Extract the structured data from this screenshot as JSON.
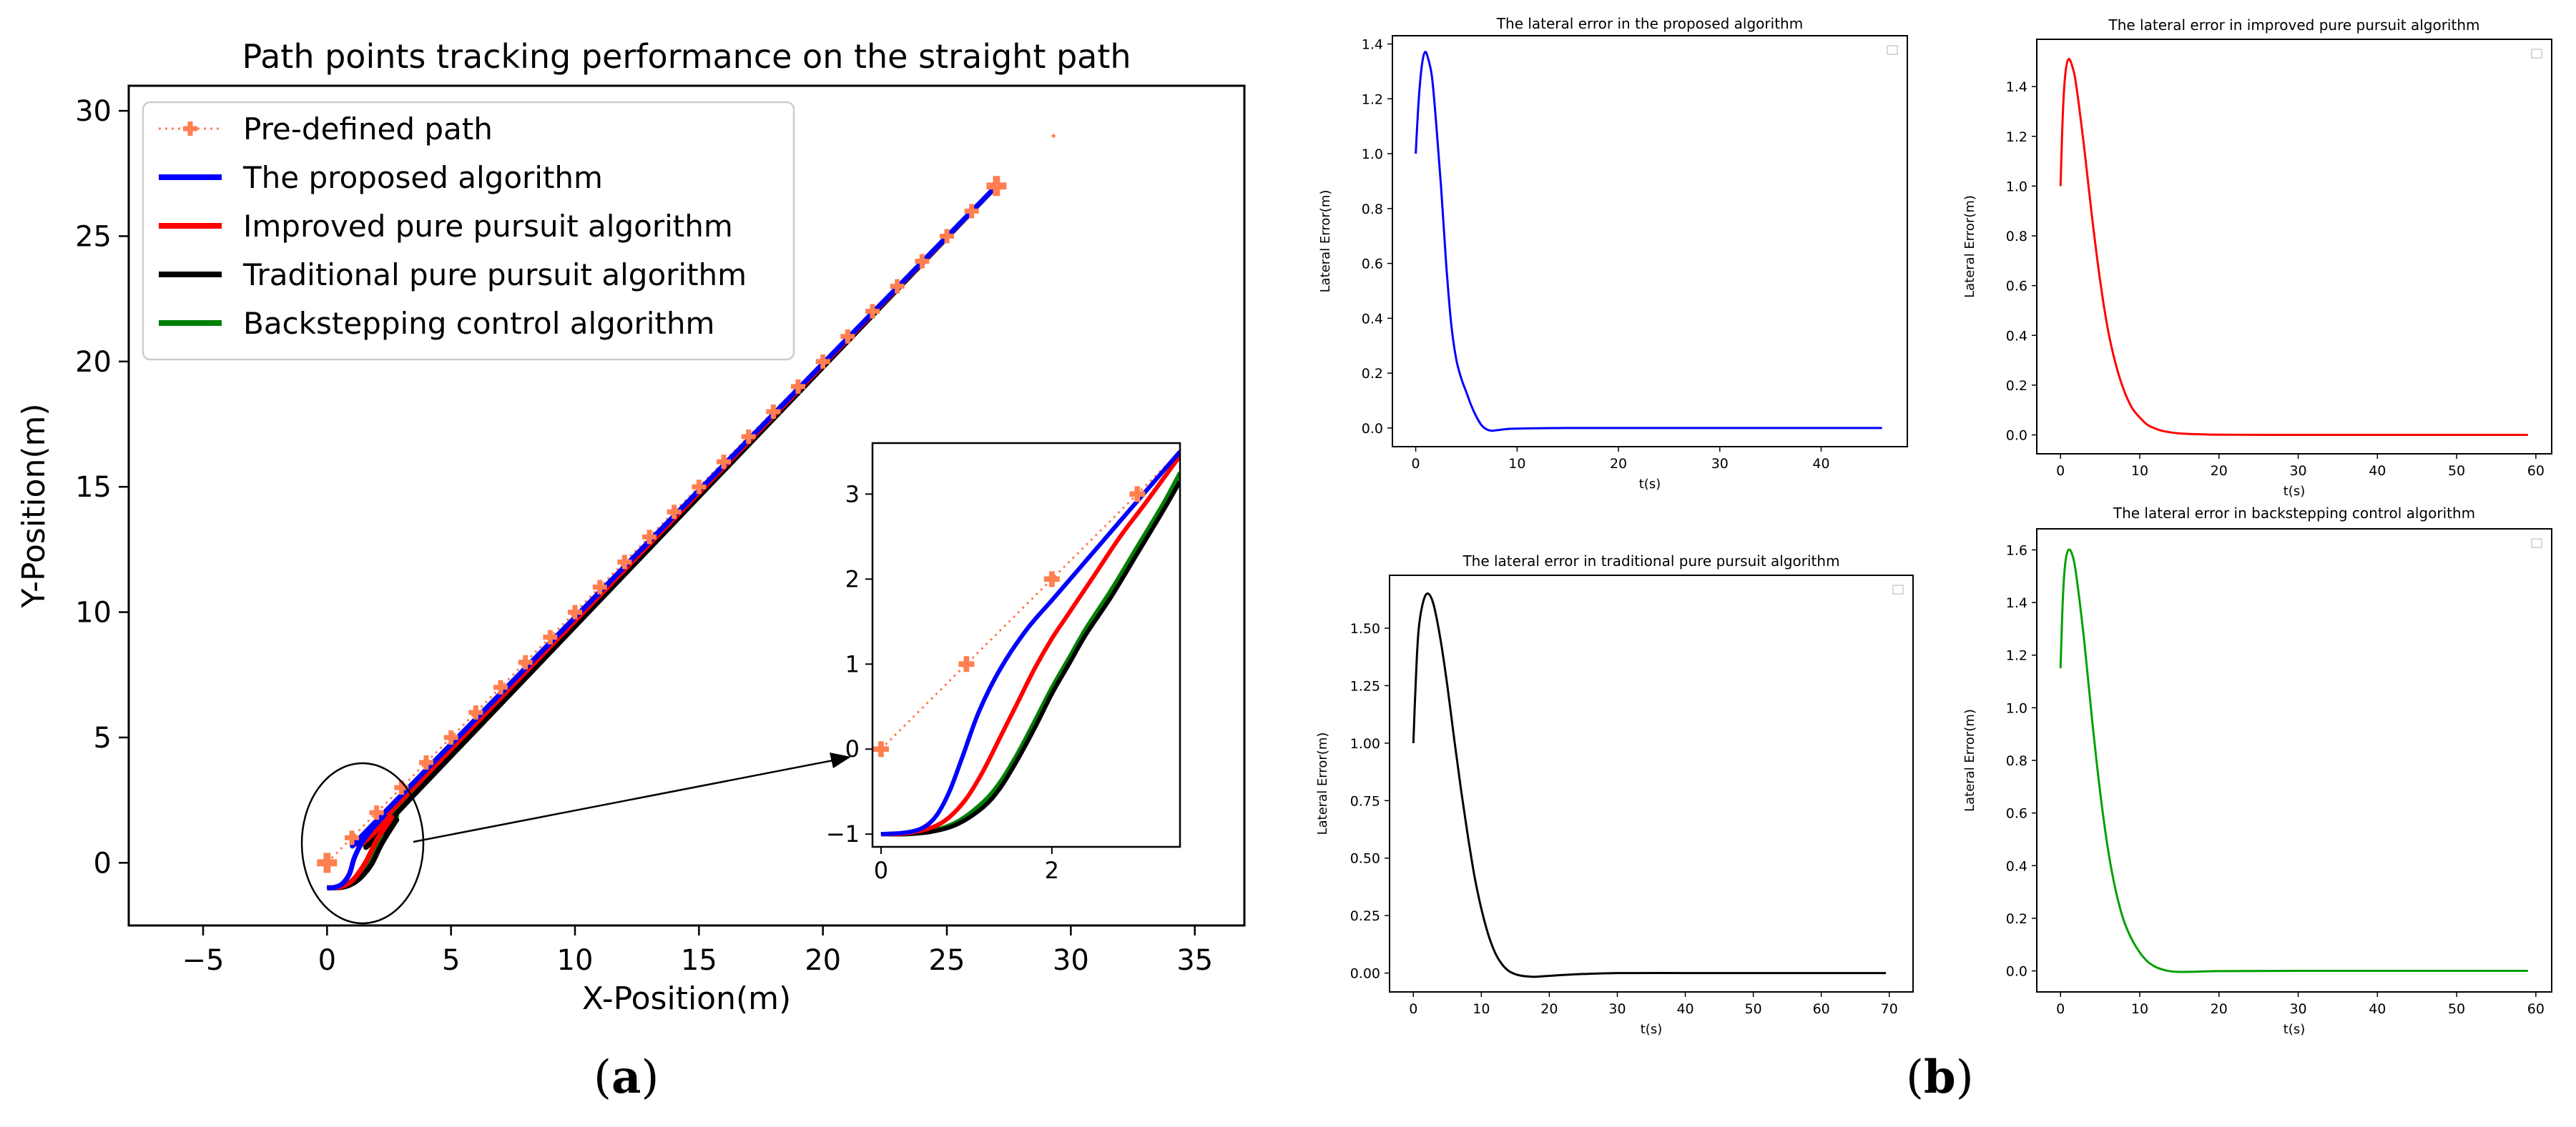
{
  "panel_labels": {
    "a": "a",
    "b": "b",
    "open": "(",
    "close": ")"
  },
  "chart_data": [
    {
      "id": "main",
      "type": "line",
      "title": "Path points tracking performance on the straight path",
      "xlabel": "X-Position(m)",
      "ylabel": "Y-Position(m)",
      "xlim": [
        -8,
        37
      ],
      "ylim": [
        -2.5,
        31
      ],
      "xticks": [
        -5,
        0,
        5,
        10,
        15,
        20,
        25,
        30,
        35
      ],
      "yticks": [
        0,
        5,
        10,
        15,
        20,
        25,
        30
      ],
      "legend": [
        "Pre-defined path",
        "The proposed algorithm",
        "Improved pure pursuit algorithm",
        "Traditional pure pursuit algorithm",
        "Backstepping control algorithm"
      ],
      "legend_position": "top-left",
      "stray_marker": {
        "x": 29.3,
        "y": 29
      },
      "series": [
        {
          "name": "Pre-defined path",
          "color": "#ff7f50",
          "style": "dotted-plus",
          "x": [
            0,
            27
          ],
          "y": [
            0,
            27
          ]
        },
        {
          "name": "The proposed algorithm",
          "color": "#0000ff",
          "x": [
            0,
            0.3,
            0.6,
            0.9,
            1.1,
            1.4,
            1.8,
            2.3,
            3,
            27
          ],
          "y": [
            -1,
            -0.98,
            -0.85,
            -0.45,
            0.2,
            0.8,
            1.35,
            1.9,
            2.7,
            27
          ]
        },
        {
          "name": "Improved pure pursuit algorithm",
          "color": "#ff0000",
          "x": [
            0,
            0.5,
            0.9,
            1.2,
            1.6,
            2,
            2.6,
            3.2,
            27
          ],
          "y": [
            -1,
            -0.97,
            -0.8,
            -0.5,
            0.1,
            0.9,
            1.8,
            2.7,
            27
          ]
        },
        {
          "name": "Traditional pure pursuit algorithm",
          "color": "#000000",
          "x": [
            0,
            0.6,
            1,
            1.4,
            1.8,
            2.2,
            2.8,
            3.5,
            27
          ],
          "y": [
            -1,
            -0.98,
            -0.85,
            -0.55,
            -0.05,
            0.75,
            1.7,
            2.7,
            27
          ]
        },
        {
          "name": "Backstepping control algorithm",
          "color": "#008000",
          "x": [
            0,
            0.6,
            1,
            1.4,
            1.8,
            2.2,
            2.8,
            3.5,
            27
          ],
          "y": [
            -1,
            -0.97,
            -0.8,
            -0.45,
            0.1,
            0.9,
            1.85,
            2.85,
            27
          ]
        }
      ]
    },
    {
      "id": "inset",
      "type": "line",
      "xlim": [
        -0.1,
        3.5
      ],
      "ylim": [
        -1.15,
        3.6
      ],
      "xticks": [
        0,
        2
      ],
      "yticks": [
        -1,
        0,
        1,
        2,
        3
      ],
      "predefined_points": {
        "x": [
          0,
          1,
          2,
          3
        ],
        "y": [
          0,
          1,
          2,
          3
        ]
      },
      "series": [
        {
          "name": "The proposed algorithm",
          "color": "#0000ff",
          "x": [
            0,
            0.3,
            0.5,
            0.65,
            0.8,
            0.95,
            1.15,
            1.4,
            1.7,
            2.0,
            2.3,
            2.6,
            2.9,
            3.2,
            3.5
          ],
          "y": [
            -1,
            -0.98,
            -0.92,
            -0.78,
            -0.5,
            -0.1,
            0.45,
            0.95,
            1.4,
            1.75,
            2.1,
            2.45,
            2.8,
            3.15,
            3.5
          ]
        },
        {
          "name": "Improved pure pursuit algorithm",
          "color": "#ff0000",
          "x": [
            0,
            0.3,
            0.6,
            0.8,
            1.0,
            1.2,
            1.4,
            1.6,
            1.8,
            2.0,
            2.2,
            2.5,
            2.8,
            3.1,
            3.5
          ],
          "y": [
            -1,
            -0.99,
            -0.92,
            -0.8,
            -0.58,
            -0.25,
            0.15,
            0.55,
            0.95,
            1.3,
            1.6,
            2.05,
            2.5,
            2.9,
            3.45
          ]
        },
        {
          "name": "Traditional pure pursuit algorithm",
          "color": "#000000",
          "x": [
            0,
            0.3,
            0.6,
            0.9,
            1.2,
            1.4,
            1.6,
            1.8,
            2.0,
            2.2,
            2.4,
            2.7,
            3.0,
            3.3,
            3.5
          ],
          "y": [
            -1,
            -1,
            -0.97,
            -0.88,
            -0.68,
            -0.45,
            -0.12,
            0.25,
            0.65,
            1.0,
            1.35,
            1.8,
            2.3,
            2.8,
            3.15
          ]
        },
        {
          "name": "Backstepping control algorithm",
          "color": "#008000",
          "x": [
            0,
            0.3,
            0.6,
            0.9,
            1.2,
            1.4,
            1.6,
            1.8,
            2.0,
            2.2,
            2.4,
            2.7,
            3.0,
            3.3,
            3.5
          ],
          "y": [
            -1,
            -0.99,
            -0.96,
            -0.85,
            -0.62,
            -0.38,
            -0.05,
            0.33,
            0.72,
            1.07,
            1.42,
            1.88,
            2.38,
            2.88,
            3.25
          ]
        }
      ]
    },
    {
      "id": "b1",
      "type": "line",
      "title": "The lateral error in the proposed algorithm",
      "xlabel": "t(s)",
      "ylabel": "Lateral Error(m)",
      "xlim": [
        -2.3,
        48.5
      ],
      "ylim": [
        -0.068,
        1.43
      ],
      "xticks": [
        0,
        10,
        20,
        30,
        40
      ],
      "yticks": [
        0,
        0.2,
        0.4,
        0.6,
        0.8,
        1.0,
        1.2,
        1.4
      ],
      "ytick_labels": [
        "0.0",
        "0.2",
        "0.4",
        "0.6",
        "0.8",
        "1.0",
        "1.2",
        "1.4"
      ],
      "series": [
        {
          "name": "lateral error",
          "color": "#0000ff",
          "x": [
            0,
            0.3,
            0.6,
            0.9,
            1.2,
            1.6,
            2.0,
            2.5,
            3.0,
            3.5,
            4.0,
            4.5,
            5.0,
            5.5,
            6.0,
            6.5,
            7.0,
            7.5,
            8.0,
            9.0,
            10.0,
            15.0,
            25.0,
            35.0,
            46.0
          ],
          "y": [
            1.0,
            1.2,
            1.32,
            1.37,
            1.35,
            1.28,
            1.12,
            0.88,
            0.6,
            0.38,
            0.25,
            0.18,
            0.13,
            0.08,
            0.04,
            0.01,
            -0.005,
            -0.01,
            -0.008,
            -0.004,
            -0.002,
            0.0,
            0.0,
            0.0,
            0.0
          ]
        }
      ]
    },
    {
      "id": "b2",
      "type": "line",
      "title": "The lateral error in improved pure pursuit algorithm",
      "xlabel": "t(s)",
      "ylabel": "Lateral Error(m)",
      "xlim": [
        -3,
        62
      ],
      "ylim": [
        -0.076,
        1.59
      ],
      "xticks": [
        0,
        10,
        20,
        30,
        40,
        50,
        60
      ],
      "yticks": [
        0,
        0.2,
        0.4,
        0.6,
        0.8,
        1.0,
        1.2,
        1.4
      ],
      "ytick_labels": [
        "0.0",
        "0.2",
        "0.4",
        "0.6",
        "0.8",
        "1.0",
        "1.2",
        "1.4"
      ],
      "series": [
        {
          "name": "lateral error",
          "color": "#ff0000",
          "x": [
            0,
            0.3,
            0.6,
            1.0,
            1.5,
            2.0,
            3.0,
            4.0,
            5.0,
            6.0,
            7.0,
            8.0,
            9.0,
            10.0,
            11.0,
            12.0,
            13.0,
            15.0,
            18.0,
            20.0,
            30.0,
            40.0,
            50.0,
            59.0
          ],
          "y": [
            1.0,
            1.3,
            1.45,
            1.51,
            1.48,
            1.4,
            1.15,
            0.87,
            0.62,
            0.42,
            0.28,
            0.18,
            0.11,
            0.07,
            0.04,
            0.025,
            0.015,
            0.006,
            0.002,
            0.001,
            0.0,
            0.0,
            0.0,
            0.0
          ]
        }
      ]
    },
    {
      "id": "b3",
      "type": "line",
      "title": "The lateral error in traditional pure pursuit algorithm",
      "xlabel": "t(s)",
      "ylabel": "Lateral Error(m)",
      "xlim": [
        -3.5,
        73.5
      ],
      "ylim": [
        -0.082,
        1.73
      ],
      "xticks": [
        0,
        10,
        20,
        30,
        40,
        50,
        60,
        70
      ],
      "yticks": [
        0,
        0.25,
        0.5,
        0.75,
        1.0,
        1.25,
        1.5
      ],
      "ytick_labels": [
        "0.00",
        "0.25",
        "0.50",
        "0.75",
        "1.00",
        "1.25",
        "1.50"
      ],
      "series": [
        {
          "name": "lateral error",
          "color": "#000000",
          "x": [
            0,
            0.4,
            0.8,
            1.5,
            2.2,
            3.0,
            4.0,
            5.0,
            6.0,
            7.0,
            8.0,
            9.0,
            10.0,
            11.0,
            12.0,
            13.0,
            14.0,
            15.0,
            16.0,
            17.0,
            18.0,
            20.0,
            25.0,
            30.0,
            40.0,
            50.0,
            60.0,
            69.5
          ],
          "y": [
            1.0,
            1.3,
            1.5,
            1.62,
            1.65,
            1.6,
            1.45,
            1.25,
            1.02,
            0.8,
            0.6,
            0.42,
            0.28,
            0.17,
            0.09,
            0.04,
            0.01,
            -0.005,
            -0.012,
            -0.015,
            -0.016,
            -0.012,
            -0.004,
            0.0,
            0.0,
            0.0,
            0.0,
            0.0
          ]
        }
      ]
    },
    {
      "id": "b4",
      "type": "line",
      "title": "The lateral error in backstepping control algorithm",
      "xlabel": "t(s)",
      "ylabel": "Lateral Error(m)",
      "xlim": [
        -3,
        62
      ],
      "ylim": [
        -0.08,
        1.68
      ],
      "xticks": [
        0,
        10,
        20,
        30,
        40,
        50,
        60
      ],
      "yticks": [
        0,
        0.2,
        0.4,
        0.6,
        0.8,
        1.0,
        1.2,
        1.4,
        1.6
      ],
      "ytick_labels": [
        "0.0",
        "0.2",
        "0.4",
        "0.6",
        "0.8",
        "1.0",
        "1.2",
        "1.4",
        "1.6"
      ],
      "series": [
        {
          "name": "lateral error",
          "color": "#00a000",
          "x": [
            0,
            0.3,
            0.6,
            1.0,
            1.5,
            2.0,
            3.0,
            4.0,
            5.0,
            6.0,
            7.0,
            8.0,
            9.0,
            10.0,
            11.0,
            12.0,
            13.0,
            14.0,
            15.0,
            17.0,
            20.0,
            30.0,
            40.0,
            50.0,
            59.0
          ],
          "y": [
            1.15,
            1.42,
            1.55,
            1.6,
            1.58,
            1.5,
            1.25,
            0.95,
            0.68,
            0.46,
            0.3,
            0.19,
            0.12,
            0.07,
            0.035,
            0.015,
            0.004,
            -0.002,
            -0.004,
            -0.003,
            -0.001,
            0.0,
            0.0,
            0.0,
            0.0
          ]
        }
      ]
    }
  ]
}
